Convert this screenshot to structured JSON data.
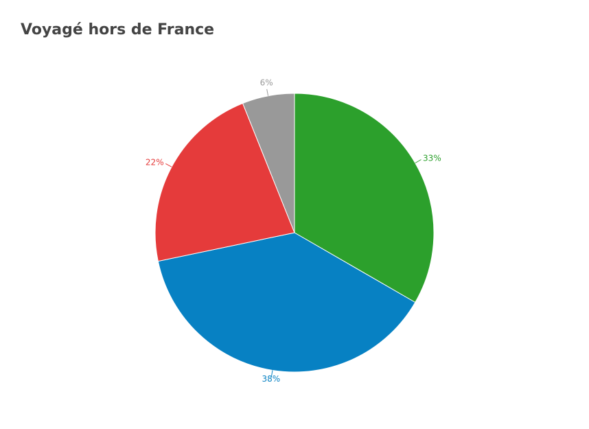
{
  "chart_data": {
    "type": "pie",
    "title": "Voyagé hors de France",
    "values": [
      33,
      38,
      22,
      6
    ],
    "value_labels": [
      "33%",
      "38%",
      "22%",
      "6%"
    ],
    "colors": [
      "#2ca02c",
      "#0781c3",
      "#e53b3b",
      "#999999"
    ]
  }
}
